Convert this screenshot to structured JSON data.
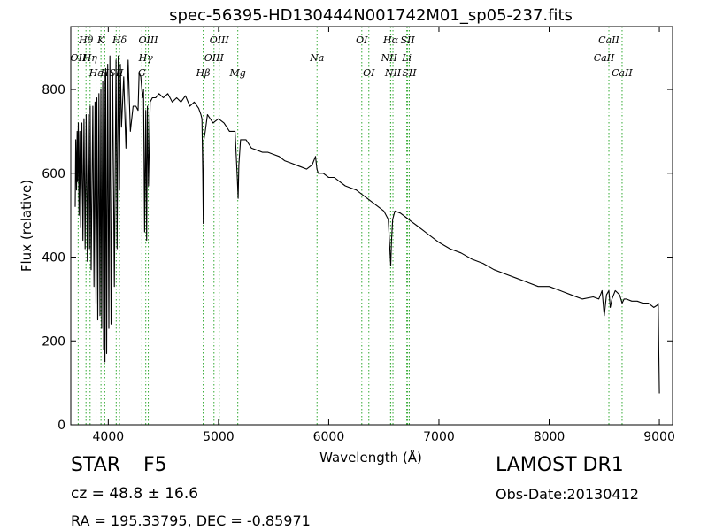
{
  "chart_data": {
    "type": "line",
    "title": "spec-56395-HD130444N001742M01_sp05-237.fits",
    "xlabel": "Wavelength (Å)",
    "ylabel": "Flux (relative)",
    "xlim": [
      3660,
      9120
    ],
    "ylim": [
      0,
      950
    ],
    "xticks": [
      4000,
      5000,
      6000,
      7000,
      8000,
      9000
    ],
    "yticks": [
      0,
      200,
      400,
      600,
      800
    ],
    "grid": false,
    "line_color": "#000000",
    "marker_color": "#33aa33",
    "series": [
      {
        "x": [
          3700,
          3705,
          3712,
          3718,
          3722,
          3728,
          3735,
          3742,
          3750,
          3760,
          3770,
          3780,
          3790,
          3800,
          3810,
          3820,
          3830,
          3836,
          3845,
          3860,
          3870,
          3880,
          3889,
          3897,
          3905,
          3915,
          3925,
          3933,
          3940,
          3950,
          3958,
          3965,
          3970,
          3976,
          3985,
          3995,
          4005,
          4015,
          4025,
          4040,
          4055,
          4070,
          4080,
          4090,
          4102,
          4110,
          4120,
          4140,
          4160,
          4180,
          4200,
          4225,
          4250,
          4270,
          4280,
          4295,
          4310,
          4320,
          4330,
          4340,
          4348,
          4355,
          4365,
          4380,
          4400,
          4430,
          4460,
          4500,
          4540,
          4580,
          4620,
          4660,
          4700,
          4740,
          4780,
          4820,
          4840,
          4850,
          4857,
          4862,
          4868,
          4880,
          4900,
          4950,
          5000,
          5050,
          5100,
          5150,
          5170,
          5178,
          5185,
          5200,
          5250,
          5300,
          5350,
          5400,
          5450,
          5500,
          5550,
          5600,
          5650,
          5700,
          5750,
          5800,
          5850,
          5880,
          5893,
          5905,
          5950,
          6000,
          6050,
          6100,
          6150,
          6200,
          6250,
          6300,
          6350,
          6400,
          6450,
          6500,
          6540,
          6555,
          6563,
          6570,
          6580,
          6600,
          6650,
          6700,
          6750,
          6800,
          6850,
          6900,
          6950,
          7000,
          7100,
          7200,
          7300,
          7400,
          7500,
          7600,
          7700,
          7800,
          7900,
          8000,
          8100,
          8200,
          8300,
          8400,
          8450,
          8480,
          8500,
          8520,
          8542,
          8555,
          8570,
          8600,
          8640,
          8662,
          8680,
          8700,
          8750,
          8800,
          8850,
          8900,
          8950,
          8980,
          8990,
          8995,
          9000
        ],
        "y": [
          520,
          680,
          560,
          700,
          580,
          720,
          500,
          700,
          470,
          720,
          440,
          730,
          420,
          740,
          390,
          740,
          420,
          760,
          370,
          760,
          330,
          770,
          290,
          780,
          250,
          790,
          260,
          800,
          230,
          820,
          180,
          840,
          150,
          850,
          170,
          860,
          230,
          880,
          240,
          840,
          330,
          870,
          420,
          880,
          560,
          860,
          710,
          830,
          660,
          870,
          700,
          760,
          760,
          750,
          840,
          830,
          780,
          800,
          460,
          750,
          440,
          760,
          570,
          770,
          780,
          780,
          790,
          780,
          790,
          770,
          780,
          770,
          785,
          760,
          770,
          755,
          740,
          730,
          600,
          480,
          680,
          700,
          740,
          720,
          730,
          720,
          700,
          700,
          590,
          540,
          620,
          680,
          680,
          660,
          655,
          650,
          650,
          645,
          640,
          630,
          625,
          620,
          615,
          610,
          620,
          640,
          610,
          600,
          600,
          590,
          590,
          580,
          570,
          565,
          560,
          550,
          540,
          530,
          520,
          510,
          490,
          420,
          380,
          440,
          490,
          510,
          505,
          495,
          485,
          475,
          465,
          455,
          445,
          435,
          420,
          410,
          395,
          385,
          370,
          360,
          350,
          340,
          330,
          330,
          320,
          310,
          300,
          305,
          300,
          320,
          260,
          310,
          320,
          280,
          300,
          320,
          310,
          290,
          300,
          300,
          295,
          295,
          290,
          290,
          280,
          285,
          290,
          180,
          75
        ]
      }
    ],
    "annotations": [
      {
        "label": "Hθ",
        "x": 3798,
        "level": 0
      },
      {
        "label": "OII",
        "x": 3727,
        "level": 1
      },
      {
        "label": "Hη",
        "x": 3835,
        "level": 1
      },
      {
        "label": "Hε",
        "x": 3889,
        "level": 2
      },
      {
        "label": "K",
        "x": 3934,
        "level": 0
      },
      {
        "label": "H",
        "x": 3968,
        "level": 2
      },
      {
        "label": "SII",
        "x": 4072,
        "level": 2
      },
      {
        "label": "Hδ",
        "x": 4102,
        "level": 0
      },
      {
        "label": "OIII",
        "x": 4363,
        "level": 0
      },
      {
        "label": "Hγ",
        "x": 4340,
        "level": 1
      },
      {
        "label": "G",
        "x": 4305,
        "level": 2
      },
      {
        "label": "OIII",
        "x": 5007,
        "level": 0
      },
      {
        "label": "OIII",
        "x": 4959,
        "level": 1
      },
      {
        "label": "Hβ",
        "x": 4861,
        "level": 2
      },
      {
        "label": "Mg",
        "x": 5175,
        "level": 2
      },
      {
        "label": "Na",
        "x": 5894,
        "level": 1
      },
      {
        "label": "OI",
        "x": 6300,
        "level": 0
      },
      {
        "label": "OI",
        "x": 6364,
        "level": 2
      },
      {
        "label": "Hα",
        "x": 6563,
        "level": 0
      },
      {
        "label": "SII",
        "x": 6716,
        "level": 0
      },
      {
        "label": "NII",
        "x": 6548,
        "level": 1
      },
      {
        "label": "Li",
        "x": 6708,
        "level": 1
      },
      {
        "label": "NII",
        "x": 6583,
        "level": 2
      },
      {
        "label": "SII",
        "x": 6731,
        "level": 2
      },
      {
        "label": "CaII",
        "x": 8542,
        "level": 0
      },
      {
        "label": "CaII",
        "x": 8498,
        "level": 1
      },
      {
        "label": "CaII",
        "x": 8662,
        "level": 2
      }
    ]
  },
  "info": {
    "object_type": "STAR",
    "subclass": "F5",
    "survey": "LAMOST DR1",
    "redshift": "cz = 48.8 ± 16.6",
    "obs_date": "Obs-Date:20130412",
    "coords": "RA = 195.33795, DEC = -0.85971"
  }
}
